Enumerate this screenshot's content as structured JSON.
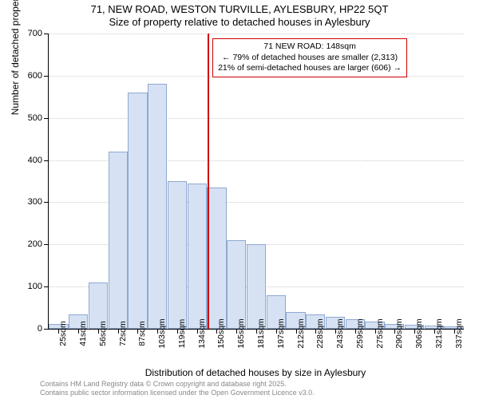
{
  "title_line1": "71, NEW ROAD, WESTON TURVILLE, AYLESBURY, HP22 5QT",
  "title_line2": "Size of property relative to detached houses in Aylesbury",
  "chart": {
    "type": "histogram",
    "y_axis_label": "Number of detached properties",
    "x_axis_label": "Distribution of detached houses by size in Aylesbury",
    "ylim": [
      0,
      700
    ],
    "ytick_step": 100,
    "y_ticks": [
      0,
      100,
      200,
      300,
      400,
      500,
      600,
      700
    ],
    "x_tick_labels": [
      "25sqm",
      "41sqm",
      "56sqm",
      "72sqm",
      "87sqm",
      "103sqm",
      "119sqm",
      "134sqm",
      "150sqm",
      "165sqm",
      "181sqm",
      "197sqm",
      "212sqm",
      "228sqm",
      "243sqm",
      "259sqm",
      "275sqm",
      "290sqm",
      "306sqm",
      "321sqm",
      "337sqm"
    ],
    "bar_values": [
      12,
      35,
      110,
      420,
      560,
      580,
      350,
      345,
      335,
      210,
      200,
      80,
      40,
      35,
      28,
      22,
      18,
      12,
      10,
      8,
      6
    ],
    "bar_color": "#d6e2f3",
    "bar_border_color": "#8fa8d1",
    "grid_color": "#cccccc",
    "background_color": "#ffffff",
    "marker_line_color": "#d00000",
    "marker_position_index": 8,
    "annotation_box_border": "#d00000",
    "annotation_lines": [
      "71 NEW ROAD: 148sqm",
      "← 79% of detached houses are smaller (2,313)",
      "21% of semi-detached houses are larger (606) →"
    ],
    "title_fontsize": 13,
    "axis_label_fontsize": 12,
    "tick_fontsize": 11
  },
  "footer_line1": "Contains HM Land Registry data © Crown copyright and database right 2025.",
  "footer_line2": "Contains public sector information licensed under the Open Government Licence v3.0."
}
